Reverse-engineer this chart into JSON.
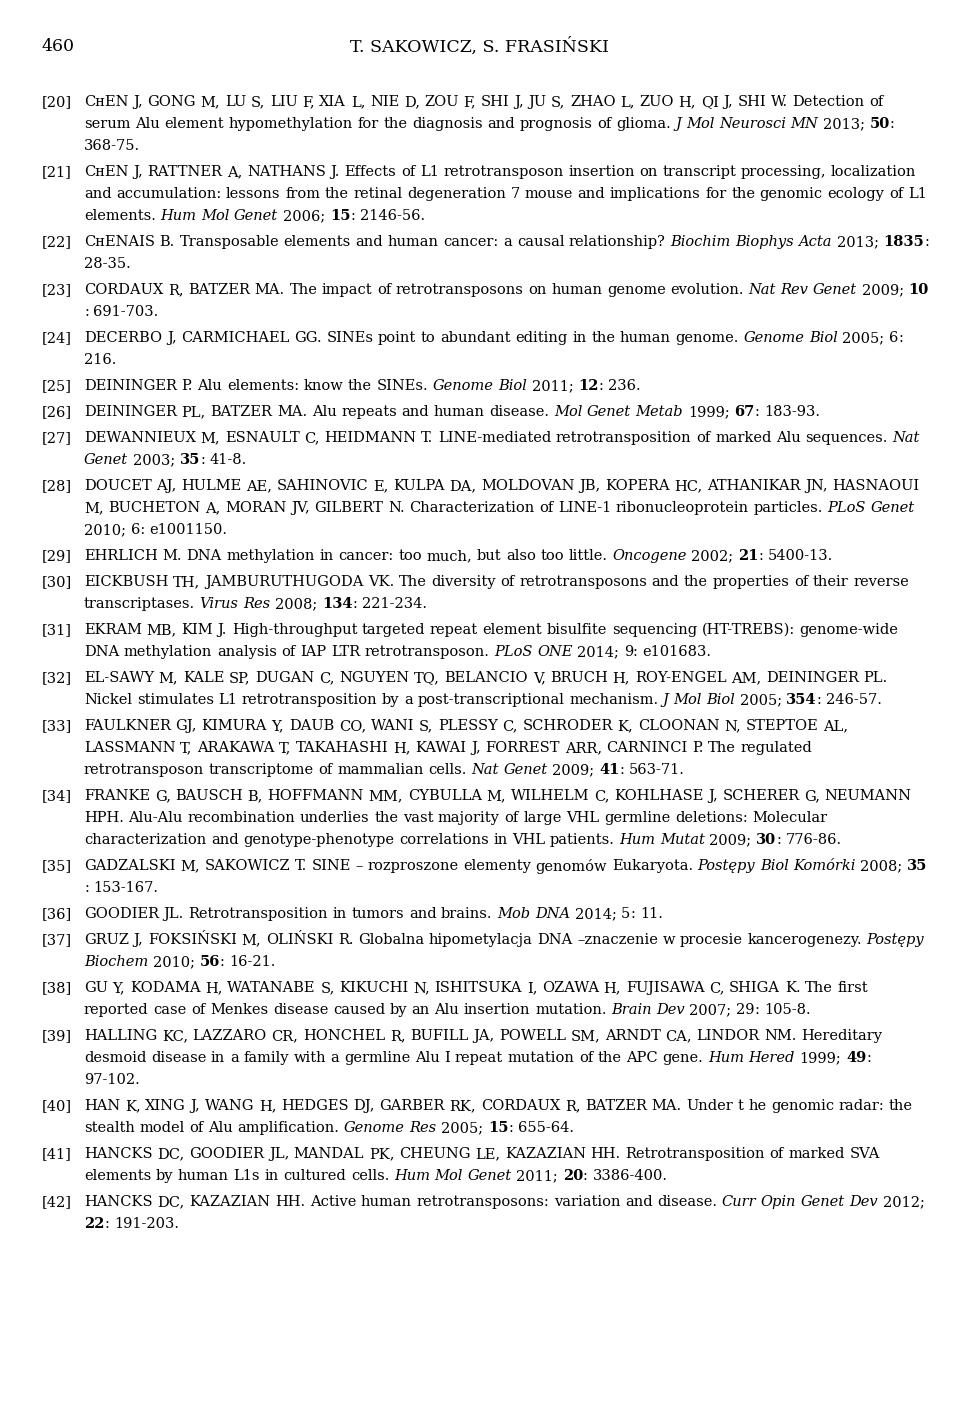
{
  "page_number": "460",
  "header": "T. SAKOWICZ, S. FRASIŃSKI",
  "background_color": "#ffffff",
  "text_color": "#000000",
  "references": [
    {
      "num": "[20]",
      "text": "CʜEN J, GONG M, LU S, LIU F, XIA L, NIE D, ZOU F, SHI J, JU S, ZHAO L, ZUO H, QI J, SHI W. Detection of serum Alu element hypomethylation for the diagnosis and prognosis of glioma. J Mol Neurosci MN 2013; 50: 368-75.",
      "parts": [
        {
          "t": "CʜEN J, GONG M, LU S, LIU F, XIA L, NIE D, ZOU F, SHI J, JU S, ZHAO L, ZUO H, QI J, SHI W. Detection of serum Alu element hypomethylation for the diagnosis and prognosis of glioma. ",
          "style": "normal"
        },
        {
          "t": "J Mol Neurosci MN",
          "style": "italic"
        },
        {
          "t": " 2013; ",
          "style": "normal"
        },
        {
          "t": "50",
          "style": "bold"
        },
        {
          "t": ": 368-75.",
          "style": "normal"
        }
      ]
    },
    {
      "num": "[21]",
      "parts": [
        {
          "t": "CʜEN J, RATTNER A, NATHANS J. Effects of L1 retrotransposon insertion on transcript processing, localization and accumulation: lessons from the retinal degeneration 7 mouse and implications for the genomic ecology of L1 elements. ",
          "style": "normal"
        },
        {
          "t": "Hum Mol Genet",
          "style": "italic"
        },
        {
          "t": " 2006; ",
          "style": "normal"
        },
        {
          "t": "15",
          "style": "bold"
        },
        {
          "t": ": 2146-56.",
          "style": "normal"
        }
      ]
    },
    {
      "num": "[22]",
      "parts": [
        {
          "t": "CʜENAIS B. Transposable elements and human cancer: a causal relationship? ",
          "style": "normal"
        },
        {
          "t": "Biochim Biophys Acta",
          "style": "italic"
        },
        {
          "t": " 2013; ",
          "style": "normal"
        },
        {
          "t": "1835",
          "style": "bold"
        },
        {
          "t": ": 28-35.",
          "style": "normal"
        }
      ]
    },
    {
      "num": "[23]",
      "parts": [
        {
          "t": "CORDAUX R, BATZER MA. The impact of retrotransposons on human genome evolution. ",
          "style": "normal"
        },
        {
          "t": "Nat Rev Genet",
          "style": "italic"
        },
        {
          "t": " 2009; ",
          "style": "normal"
        },
        {
          "t": "10",
          "style": "bold"
        },
        {
          "t": ": 691-703.",
          "style": "normal"
        }
      ]
    },
    {
      "num": "[24]",
      "parts": [
        {
          "t": "DECERBO J, CARMICHAEL GG. SINEs point to abundant editing in the human genome. ",
          "style": "normal"
        },
        {
          "t": "Genome Biol",
          "style": "italic"
        },
        {
          "t": " 2005; ",
          "style": "normal"
        },
        {
          "t": "6",
          "style": "normal"
        },
        {
          "t": ": 216.",
          "style": "normal"
        }
      ]
    },
    {
      "num": "[25]",
      "parts": [
        {
          "t": "DEININGER P. Alu elements: know the SINEs. ",
          "style": "normal"
        },
        {
          "t": "Genome Biol",
          "style": "italic"
        },
        {
          "t": " 2011; ",
          "style": "normal"
        },
        {
          "t": "12",
          "style": "bold"
        },
        {
          "t": ": 236.",
          "style": "normal"
        }
      ]
    },
    {
      "num": "[26]",
      "parts": [
        {
          "t": "DEININGER PL, BATZER MA. Alu repeats and human disease. ",
          "style": "normal"
        },
        {
          "t": "Mol Genet Metab",
          "style": "italic"
        },
        {
          "t": " 1999; ",
          "style": "normal"
        },
        {
          "t": "67",
          "style": "bold"
        },
        {
          "t": ": 183-93.",
          "style": "normal"
        }
      ]
    },
    {
      "num": "[27]",
      "parts": [
        {
          "t": "DEWANNIEUX M, ESNAULT C, HEIDMANN T. LINE-mediated retrotransposition of marked Alu sequences. ",
          "style": "normal"
        },
        {
          "t": "Nat Genet",
          "style": "italic"
        },
        {
          "t": " 2003; ",
          "style": "normal"
        },
        {
          "t": "35",
          "style": "bold"
        },
        {
          "t": ": 41-8.",
          "style": "normal"
        }
      ]
    },
    {
      "num": "[28]",
      "parts": [
        {
          "t": "DOUCET AJ, HULME AE, SAHINOVIC E, KULPA DA, MOLDOVAN JB, KOPERA HC, ATHANIKAR JN, HASNAOUI M, BUCHETON A, MORAN JV, GILBERT N. Characterization of LINE-1 ribonucleoprotein particles. ",
          "style": "normal"
        },
        {
          "t": "PLoS Genet",
          "style": "italic"
        },
        {
          "t": " 2010; 6: e1001150.",
          "style": "normal"
        }
      ]
    },
    {
      "num": "[29]",
      "parts": [
        {
          "t": "EHRLICH M. DNA methylation in cancer: too much, but also too little. ",
          "style": "normal"
        },
        {
          "t": "Oncogene",
          "style": "italic"
        },
        {
          "t": " 2002; ",
          "style": "normal"
        },
        {
          "t": "21",
          "style": "bold"
        },
        {
          "t": ": 5400-13.",
          "style": "normal"
        }
      ]
    },
    {
      "num": "[30]",
      "parts": [
        {
          "t": "EICKBUSH TH, JAMBURUTHUGODA VK. The diversity of retrotransposons and the properties of their reverse transcriptases. ",
          "style": "normal"
        },
        {
          "t": "Virus Res",
          "style": "italic"
        },
        {
          "t": " 2008; ",
          "style": "normal"
        },
        {
          "t": "134",
          "style": "bold"
        },
        {
          "t": ": 221-234.",
          "style": "normal"
        }
      ]
    },
    {
      "num": "[31]",
      "parts": [
        {
          "t": "EKRAM MB, KIM J. High-throughput targeted repeat element bisulfite sequencing (HT-TREBS): genome-wide DNA methylation analysis of IAP LTR retrotransposon. ",
          "style": "normal"
        },
        {
          "t": "PLoS ONE",
          "style": "italic"
        },
        {
          "t": " 2014; ",
          "style": "normal"
        },
        {
          "t": "9",
          "style": "normal"
        },
        {
          "t": ": e101683.",
          "style": "normal"
        }
      ]
    },
    {
      "num": "[32]",
      "parts": [
        {
          "t": "EL-SAWY M, KALE SP, DUGAN C, NGUYEN TQ, BELANCIO V, BRUCH H, ROY-ENGEL AM, DEININGER PL. Nickel stimulates L1 retrotransposition by a post-transcriptional mechanism. ",
          "style": "normal"
        },
        {
          "t": "J Mol Biol",
          "style": "italic"
        },
        {
          "t": " 2005; ",
          "style": "normal"
        },
        {
          "t": "354",
          "style": "bold"
        },
        {
          "t": ": 246-57.",
          "style": "normal"
        }
      ]
    },
    {
      "num": "[33]",
      "parts": [
        {
          "t": "FAULKNER GJ, KIMURA Y, DAUB CO, WANI S, PLESSY C, SCHRODER K, CLOONAN N, STEPTOE AL, LASSMANN T, ARAKAWA T, TAKAHASHI H, KAWAI J, FORREST ARR, CARNINCI P. The regulated retrotransposon transcriptome of mammalian cells. ",
          "style": "normal"
        },
        {
          "t": "Nat Genet",
          "style": "italic"
        },
        {
          "t": " 2009; ",
          "style": "normal"
        },
        {
          "t": "41",
          "style": "bold"
        },
        {
          "t": ": 563-71.",
          "style": "normal"
        }
      ]
    },
    {
      "num": "[34]",
      "parts": [
        {
          "t": "FRANKE G, BAUSCH B, HOFFMANN MM, CYBULLA M, WILHELM C, KOHLHASE J, SCHERER G, NEUMANN HPH. Alu-Alu recombination underlies the vast majority of large VHL germline deletions: Molecular characterization and genotype-phenotype correlations in VHL patients. ",
          "style": "normal"
        },
        {
          "t": "Hum Mutat",
          "style": "italic"
        },
        {
          "t": " 2009; ",
          "style": "normal"
        },
        {
          "t": "30",
          "style": "bold"
        },
        {
          "t": ": 776-86.",
          "style": "normal"
        }
      ]
    },
    {
      "num": "[35]",
      "parts": [
        {
          "t": "GADZALSKI M, SAKOWICZ T. SINE – rozproszone elementy genomów Eukaryota. ",
          "style": "normal"
        },
        {
          "t": "Postępy Biol Komórki",
          "style": "italic"
        },
        {
          "t": " 2008; ",
          "style": "normal"
        },
        {
          "t": "35",
          "style": "bold"
        },
        {
          "t": ": 153-167.",
          "style": "normal"
        }
      ]
    },
    {
      "num": "[36]",
      "parts": [
        {
          "t": "GOODIER JL. Retrotransposition in tumors and brains. ",
          "style": "normal"
        },
        {
          "t": "Mob DNA",
          "style": "italic"
        },
        {
          "t": " 2014; ",
          "style": "normal"
        },
        {
          "t": "5",
          "style": "normal"
        },
        {
          "t": ": 11.",
          "style": "normal"
        }
      ]
    },
    {
      "num": "[37]",
      "parts": [
        {
          "t": "GRUZ J, FOKSIŃSKI M, OLIŃSKI R. Globalna hipometylacja DNA –znaczenie w procesie kancerogenezy. ",
          "style": "normal"
        },
        {
          "t": "Postępy Biochem",
          "style": "italic"
        },
        {
          "t": " 2010; ",
          "style": "normal"
        },
        {
          "t": "56",
          "style": "bold"
        },
        {
          "t": ": 16-21.",
          "style": "normal"
        }
      ]
    },
    {
      "num": "[38]",
      "parts": [
        {
          "t": "GU Y, KODAMA H, WATANABE S, KIKUCHI N, ISHITSUKA I, OZAWA H, FUJISAWA C, SHIGA K. The first reported case of Menkes disease caused by an Alu insertion mutation. ",
          "style": "normal"
        },
        {
          "t": "Brain Dev",
          "style": "italic"
        },
        {
          "t": " 2007; ",
          "style": "normal"
        },
        {
          "t": "29",
          "style": "normal"
        },
        {
          "t": ": 105-8.",
          "style": "normal"
        }
      ]
    },
    {
      "num": "[39]",
      "parts": [
        {
          "t": "HALLING KC, LAZZARO CR, HONCHEL R, BUFILL JA, POWELL SM, ARNDT CA, LINDOR NM. Hereditary desmoid disease in a family with a germline Alu I repeat mutation of the APC gene. ",
          "style": "normal"
        },
        {
          "t": "Hum Hered",
          "style": "italic"
        },
        {
          "t": " 1999; ",
          "style": "normal"
        },
        {
          "t": "49",
          "style": "bold"
        },
        {
          "t": ": 97-102.",
          "style": "normal"
        }
      ]
    },
    {
      "num": "[40]",
      "parts": [
        {
          "t": "HAN K, XING J, WANG H, HEDGES DJ, GARBER RK, CORDAUX R, BATZER MA. Under t he genomic radar: the stealth model of Alu amplification. ",
          "style": "normal"
        },
        {
          "t": "Genome Res",
          "style": "italic"
        },
        {
          "t": " 2005; ",
          "style": "normal"
        },
        {
          "t": "15",
          "style": "bold"
        },
        {
          "t": ": 655-64.",
          "style": "normal"
        }
      ]
    },
    {
      "num": "[41]",
      "parts": [
        {
          "t": "HANCKS DC, GOODIER JL, MANDAL PK, CHEUNG LE, KAZAZIAN HH. Retrotransposition of marked SVA elements by human L1s in cultured cells. ",
          "style": "normal"
        },
        {
          "t": "Hum Mol Genet",
          "style": "italic"
        },
        {
          "t": " 2011; ",
          "style": "normal"
        },
        {
          "t": "20",
          "style": "bold"
        },
        {
          "t": ": 3386-400.",
          "style": "normal"
        }
      ]
    },
    {
      "num": "[42]",
      "parts": [
        {
          "t": "HANCKS DC, KAZAZIAN HH. Active human retrotransposons: variation and disease. ",
          "style": "normal"
        },
        {
          "t": "Curr Opin Genet Dev",
          "style": "italic"
        },
        {
          "t": " 2012; ",
          "style": "normal"
        },
        {
          "t": "22",
          "style": "bold"
        },
        {
          "t": ": 191-203.",
          "style": "normal"
        }
      ]
    }
  ]
}
